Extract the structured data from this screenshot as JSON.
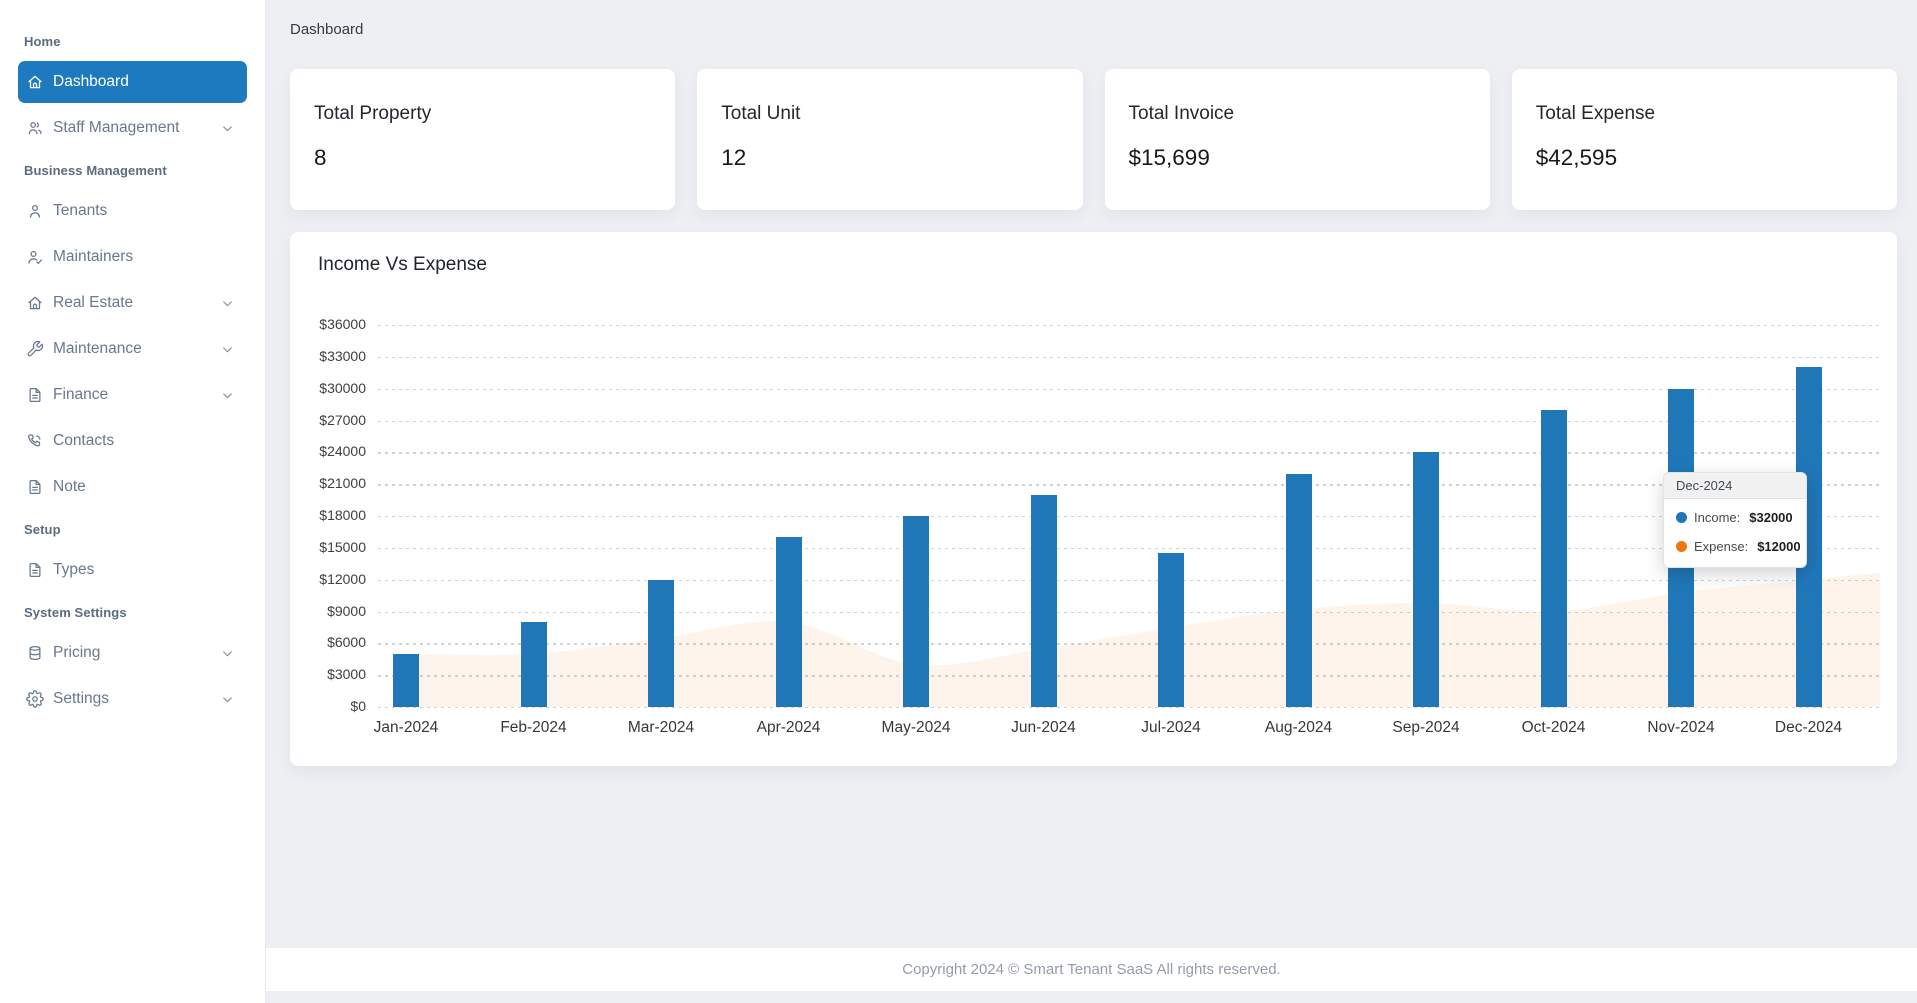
{
  "page": {
    "title": "Dashboard"
  },
  "sidebar": {
    "sections": [
      {
        "label": "Home",
        "items": [
          {
            "label": "Dashboard",
            "icon": "home-icon",
            "active": true,
            "expandable": false
          },
          {
            "label": "Staff Management",
            "icon": "users-icon",
            "active": false,
            "expandable": true
          }
        ]
      },
      {
        "label": "Business Management",
        "items": [
          {
            "label": "Tenants",
            "icon": "user-icon",
            "active": false,
            "expandable": false
          },
          {
            "label": "Maintainers",
            "icon": "user-check-icon",
            "active": false,
            "expandable": false
          },
          {
            "label": "Real Estate",
            "icon": "home-icon",
            "active": false,
            "expandable": true
          },
          {
            "label": "Maintenance",
            "icon": "wrench-icon",
            "active": false,
            "expandable": true
          },
          {
            "label": "Finance",
            "icon": "file-icon",
            "active": false,
            "expandable": true
          },
          {
            "label": "Contacts",
            "icon": "phone-icon",
            "active": false,
            "expandable": false
          },
          {
            "label": "Note",
            "icon": "file-icon",
            "active": false,
            "expandable": false
          }
        ]
      },
      {
        "label": "Setup",
        "items": [
          {
            "label": "Types",
            "icon": "file-icon",
            "active": false,
            "expandable": false
          }
        ]
      },
      {
        "label": "System Settings",
        "items": [
          {
            "label": "Pricing",
            "icon": "database-icon",
            "active": false,
            "expandable": true
          },
          {
            "label": "Settings",
            "icon": "gear-icon",
            "active": false,
            "expandable": true
          }
        ]
      }
    ]
  },
  "stats": [
    {
      "label": "Total Property",
      "value": "8"
    },
    {
      "label": "Total Unit",
      "value": "12"
    },
    {
      "label": "Total Invoice",
      "value": "$15,699"
    },
    {
      "label": "Total Expense",
      "value": "$42,595"
    }
  ],
  "chart_data": {
    "type": "bar",
    "title": "Income Vs Expense",
    "categories": [
      "Jan-2024",
      "Feb-2024",
      "Mar-2024",
      "Apr-2024",
      "May-2024",
      "Jun-2024",
      "Jul-2024",
      "Aug-2024",
      "Sep-2024",
      "Oct-2024",
      "Nov-2024",
      "Dec-2024"
    ],
    "series": [
      {
        "name": "Income",
        "type": "bar",
        "color": "#2077b8",
        "values": [
          5000,
          8000,
          12000,
          16000,
          18000,
          20000,
          14500,
          22000,
          24000,
          28000,
          30000,
          32000
        ]
      },
      {
        "name": "Expense",
        "type": "area",
        "color": "#f0770e",
        "fill": "rgba(240,119,14,0.08)",
        "values": [
          5000,
          5000,
          6500,
          8000,
          4000,
          5500,
          7500,
          9200,
          9800,
          9000,
          10800,
          12000
        ]
      }
    ],
    "ylim": [
      0,
      36000
    ],
    "ytick_step": 3000,
    "ytick_prefix": "$",
    "grid": "horizontal-dotted",
    "legend": "none"
  },
  "tooltip": {
    "title": "Dec-2024",
    "rows": [
      {
        "label": "Income:",
        "value": "$32000",
        "color": "#2077b8"
      },
      {
        "label": "Expense:",
        "value": "$12000",
        "color": "#f0770e"
      }
    ]
  },
  "footer": {
    "text": "Copyright 2024 © Smart Tenant SaaS All rights reserved."
  },
  "colors": {
    "accent": "#1e7abf",
    "background": "#edeff3",
    "card": "#ffffff",
    "income": "#2077b8",
    "expense": "#f0770e"
  }
}
